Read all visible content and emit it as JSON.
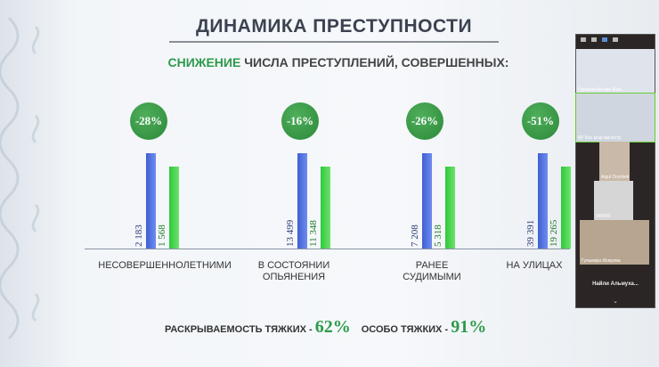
{
  "slide": {
    "title": "ДИНАМИКА ПРЕСТУПНОСТИ",
    "subtitle_green": "СНИЖЕНИЕ",
    "subtitle_rest": " ЧИСЛА ПРЕСТУПЛЕНИЙ, СОВЕРШЕННЫХ:",
    "bottom": {
      "label1": "РАСКРЫВАЕМОСТЬ ТЯЖКИХ - ",
      "value1": "62%",
      "label2": "ОСОБО ТЯЖКИХ - ",
      "value2": "91%"
    }
  },
  "chart_data": {
    "type": "bar",
    "categories": [
      "НЕСОВЕРШЕННОЛЕТНИМИ",
      "В СОСТОЯНИИ ОПЬЯНЕНИЯ",
      "РАНЕЕ СУДИМЫМИ",
      "НА УЛИЦАХ"
    ],
    "series": [
      {
        "color": "#4a6ae0",
        "values": [
          2183,
          13499,
          7208,
          39391
        ],
        "labels": [
          "2 183",
          "13 499",
          "7 208",
          "39 391"
        ]
      },
      {
        "color": "#3fd44a",
        "values": [
          1568,
          11348,
          5318,
          19265
        ],
        "labels": [
          "1 568",
          "11 348",
          "5 318",
          "19 265"
        ]
      }
    ],
    "changes": [
      "-28%",
      "-16%",
      "-26%",
      "-51%"
    ]
  },
  "video_panel": {
    "participants": [
      "Гурмаганбетова Жан...",
      "ҚР Бас қтар министр",
      "Aigul Orynbek",
      "985945",
      "Гульмира Исмуова"
    ],
    "more": "Найли Альмуха..."
  }
}
